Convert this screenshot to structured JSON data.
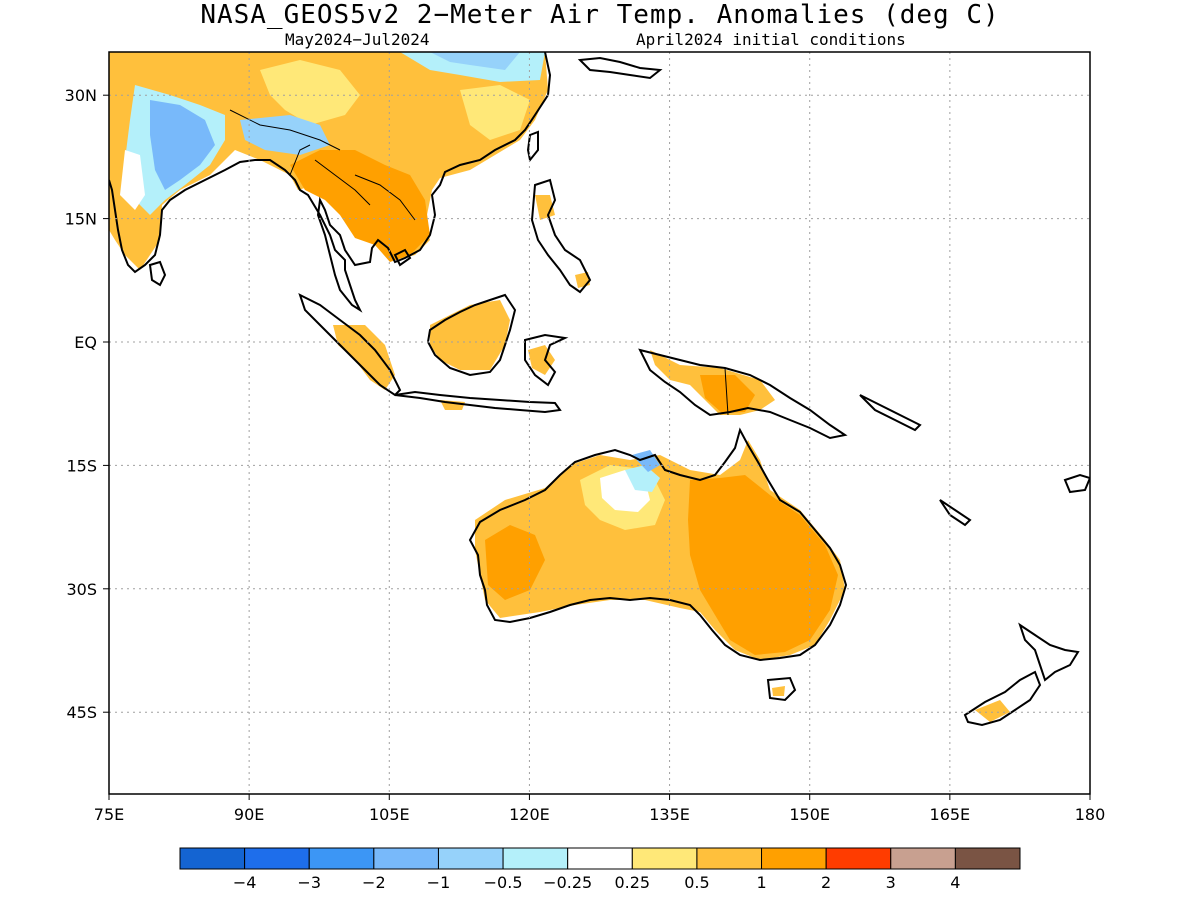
{
  "header": {
    "title": "NASA_GEOS5v2 2−Meter Air Temp. Anomalies (deg C)",
    "period": "May2024−Jul2024",
    "initial_conditions": "April2024 initial conditions"
  },
  "map": {
    "lon_range": [
      75,
      180
    ],
    "lat_range": [
      -55,
      35
    ],
    "lat_ticks": [
      {
        "value": 30,
        "label": "30N"
      },
      {
        "value": 15,
        "label": "15N"
      },
      {
        "value": 0,
        "label": "EQ"
      },
      {
        "value": -15,
        "label": "15S"
      },
      {
        "value": -30,
        "label": "30S"
      },
      {
        "value": -45,
        "label": "45S"
      }
    ],
    "lon_ticks": [
      {
        "value": 75,
        "label": "75E"
      },
      {
        "value": 90,
        "label": "90E"
      },
      {
        "value": 105,
        "label": "105E"
      },
      {
        "value": 120,
        "label": "120E"
      },
      {
        "value": 135,
        "label": "135E"
      },
      {
        "value": 150,
        "label": "150E"
      },
      {
        "value": 165,
        "label": "165E"
      },
      {
        "value": 180,
        "label": "180"
      }
    ],
    "grid": true
  },
  "colorbar": {
    "colors": [
      "#1464d2",
      "#1e6eeb",
      "#3c96f5",
      "#78b9fa",
      "#96d2fa",
      "#b4f0fa",
      "#ffffff",
      "#ffe878",
      "#ffc03c",
      "#ffa000",
      "#ff3c00",
      "#c8a090",
      "#7a5444"
    ],
    "labels": [
      "−4",
      "−3",
      "−2",
      "−1",
      "−0.5",
      "−0.25",
      "0.25",
      "0.5",
      "1",
      "2",
      "3",
      "4"
    ]
  },
  "colors": {
    "slight_warm": "#ffe878",
    "warm": "#ffc03c",
    "strong_warm": "#ffa000",
    "cool": "#96d2fa",
    "cooler": "#78b9fa",
    "slight_cool": "#b4f0fa"
  }
}
